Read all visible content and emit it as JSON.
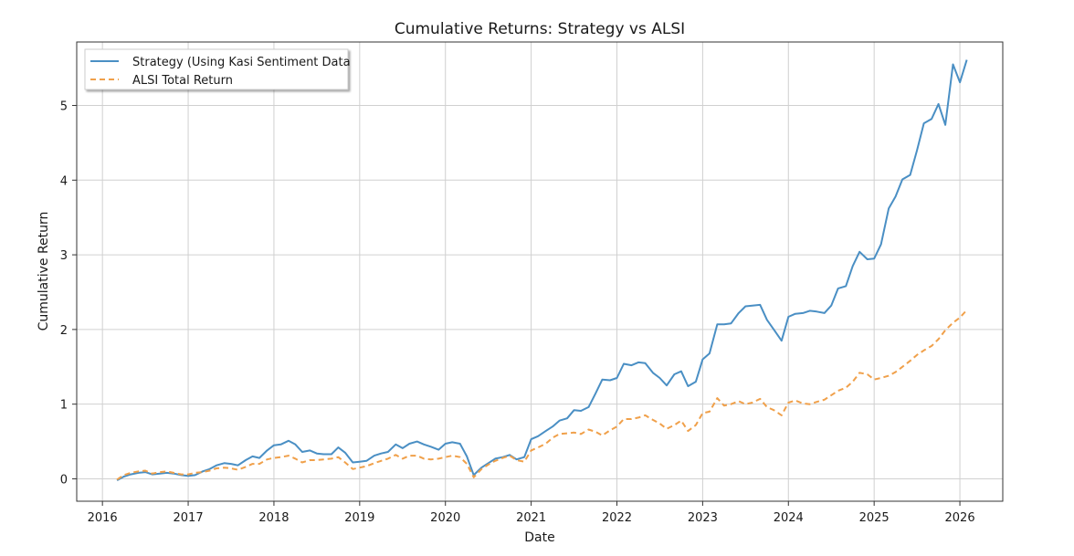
{
  "chart_data": {
    "type": "line",
    "title": "Cumulative Returns: Strategy vs ALSI",
    "xlabel": "Date",
    "ylabel": "Cumulative Return",
    "xlim": [
      2015.7,
      2026.5
    ],
    "ylim": [
      -0.3,
      5.85
    ],
    "xticks": [
      2016,
      2017,
      2018,
      2019,
      2020,
      2021,
      2022,
      2023,
      2024,
      2025,
      2026
    ],
    "yticks": [
      0,
      1,
      2,
      3,
      4,
      5
    ],
    "grid": true,
    "legend_position": "top-left",
    "colors": {
      "strategy": "#4a8fc4",
      "alsi": "#f0a04a"
    },
    "series": [
      {
        "name": "Strategy (Using Kasi Sentiment Data",
        "style": "solid",
        "points": [
          [
            2016.17,
            -0.02
          ],
          [
            2016.25,
            0.03
          ],
          [
            2016.33,
            0.06
          ],
          [
            2016.42,
            0.08
          ],
          [
            2016.5,
            0.09
          ],
          [
            2016.58,
            0.06
          ],
          [
            2016.67,
            0.07
          ],
          [
            2016.75,
            0.08
          ],
          [
            2016.83,
            0.07
          ],
          [
            2016.92,
            0.05
          ],
          [
            2017.0,
            0.04
          ],
          [
            2017.08,
            0.05
          ],
          [
            2017.17,
            0.1
          ],
          [
            2017.25,
            0.13
          ],
          [
            2017.33,
            0.18
          ],
          [
            2017.42,
            0.21
          ],
          [
            2017.5,
            0.2
          ],
          [
            2017.58,
            0.18
          ],
          [
            2017.67,
            0.25
          ],
          [
            2017.75,
            0.3
          ],
          [
            2017.83,
            0.28
          ],
          [
            2017.92,
            0.38
          ],
          [
            2018.0,
            0.45
          ],
          [
            2018.08,
            0.46
          ],
          [
            2018.17,
            0.51
          ],
          [
            2018.25,
            0.46
          ],
          [
            2018.33,
            0.36
          ],
          [
            2018.42,
            0.38
          ],
          [
            2018.5,
            0.34
          ],
          [
            2018.58,
            0.33
          ],
          [
            2018.67,
            0.33
          ],
          [
            2018.75,
            0.42
          ],
          [
            2018.83,
            0.35
          ],
          [
            2018.92,
            0.22
          ],
          [
            2019.0,
            0.23
          ],
          [
            2019.08,
            0.24
          ],
          [
            2019.17,
            0.31
          ],
          [
            2019.25,
            0.34
          ],
          [
            2019.33,
            0.36
          ],
          [
            2019.42,
            0.46
          ],
          [
            2019.5,
            0.41
          ],
          [
            2019.58,
            0.47
          ],
          [
            2019.67,
            0.5
          ],
          [
            2019.75,
            0.46
          ],
          [
            2019.83,
            0.43
          ],
          [
            2019.92,
            0.39
          ],
          [
            2020.0,
            0.47
          ],
          [
            2020.08,
            0.49
          ],
          [
            2020.17,
            0.47
          ],
          [
            2020.25,
            0.3
          ],
          [
            2020.33,
            0.05
          ],
          [
            2020.42,
            0.15
          ],
          [
            2020.5,
            0.21
          ],
          [
            2020.58,
            0.27
          ],
          [
            2020.67,
            0.29
          ],
          [
            2020.75,
            0.32
          ],
          [
            2020.83,
            0.26
          ],
          [
            2020.92,
            0.29
          ],
          [
            2021.0,
            0.53
          ],
          [
            2021.08,
            0.57
          ],
          [
            2021.17,
            0.64
          ],
          [
            2021.25,
            0.7
          ],
          [
            2021.33,
            0.78
          ],
          [
            2021.42,
            0.81
          ],
          [
            2021.5,
            0.92
          ],
          [
            2021.58,
            0.91
          ],
          [
            2021.67,
            0.96
          ],
          [
            2021.75,
            1.14
          ],
          [
            2021.83,
            1.33
          ],
          [
            2021.92,
            1.32
          ],
          [
            2022.0,
            1.35
          ],
          [
            2022.08,
            1.54
          ],
          [
            2022.17,
            1.52
          ],
          [
            2022.25,
            1.56
          ],
          [
            2022.33,
            1.55
          ],
          [
            2022.42,
            1.42
          ],
          [
            2022.5,
            1.35
          ],
          [
            2022.58,
            1.25
          ],
          [
            2022.67,
            1.4
          ],
          [
            2022.75,
            1.44
          ],
          [
            2022.83,
            1.24
          ],
          [
            2022.92,
            1.3
          ],
          [
            2023.0,
            1.6
          ],
          [
            2023.08,
            1.68
          ],
          [
            2023.17,
            2.07
          ],
          [
            2023.25,
            2.07
          ],
          [
            2023.33,
            2.08
          ],
          [
            2023.42,
            2.22
          ],
          [
            2023.5,
            2.31
          ],
          [
            2023.58,
            2.32
          ],
          [
            2023.67,
            2.33
          ],
          [
            2023.75,
            2.13
          ],
          [
            2023.83,
            2.0
          ],
          [
            2023.92,
            1.85
          ],
          [
            2024.0,
            2.17
          ],
          [
            2024.08,
            2.21
          ],
          [
            2024.17,
            2.22
          ],
          [
            2024.25,
            2.25
          ],
          [
            2024.33,
            2.24
          ],
          [
            2024.42,
            2.22
          ],
          [
            2024.5,
            2.32
          ],
          [
            2024.58,
            2.55
          ],
          [
            2024.67,
            2.58
          ],
          [
            2024.75,
            2.85
          ],
          [
            2024.83,
            3.04
          ],
          [
            2024.92,
            2.94
          ],
          [
            2025.0,
            2.95
          ],
          [
            2025.08,
            3.14
          ],
          [
            2025.17,
            3.62
          ],
          [
            2025.25,
            3.78
          ],
          [
            2025.33,
            4.01
          ],
          [
            2025.42,
            4.07
          ],
          [
            2025.5,
            4.4
          ],
          [
            2025.58,
            4.76
          ],
          [
            2025.67,
            4.82
          ],
          [
            2025.75,
            5.02
          ],
          [
            2025.83,
            4.74
          ],
          [
            2025.92,
            5.55
          ],
          [
            2026.0,
            5.31
          ],
          [
            2026.08,
            5.61
          ]
        ]
      },
      {
        "name": "ALSI Total Return",
        "style": "dashed",
        "points": [
          [
            2016.17,
            -0.01
          ],
          [
            2016.25,
            0.05
          ],
          [
            2016.33,
            0.08
          ],
          [
            2016.42,
            0.1
          ],
          [
            2016.5,
            0.11
          ],
          [
            2016.58,
            0.07
          ],
          [
            2016.67,
            0.09
          ],
          [
            2016.75,
            0.1
          ],
          [
            2016.83,
            0.08
          ],
          [
            2016.92,
            0.06
          ],
          [
            2017.0,
            0.06
          ],
          [
            2017.08,
            0.08
          ],
          [
            2017.17,
            0.09
          ],
          [
            2017.25,
            0.11
          ],
          [
            2017.33,
            0.14
          ],
          [
            2017.42,
            0.15
          ],
          [
            2017.5,
            0.14
          ],
          [
            2017.58,
            0.12
          ],
          [
            2017.67,
            0.16
          ],
          [
            2017.75,
            0.2
          ],
          [
            2017.83,
            0.2
          ],
          [
            2017.92,
            0.26
          ],
          [
            2018.0,
            0.28
          ],
          [
            2018.08,
            0.29
          ],
          [
            2018.17,
            0.31
          ],
          [
            2018.25,
            0.27
          ],
          [
            2018.33,
            0.22
          ],
          [
            2018.42,
            0.25
          ],
          [
            2018.5,
            0.25
          ],
          [
            2018.58,
            0.26
          ],
          [
            2018.67,
            0.27
          ],
          [
            2018.75,
            0.29
          ],
          [
            2018.83,
            0.22
          ],
          [
            2018.92,
            0.13
          ],
          [
            2019.0,
            0.15
          ],
          [
            2019.08,
            0.17
          ],
          [
            2019.17,
            0.21
          ],
          [
            2019.25,
            0.24
          ],
          [
            2019.33,
            0.27
          ],
          [
            2019.42,
            0.32
          ],
          [
            2019.5,
            0.27
          ],
          [
            2019.58,
            0.31
          ],
          [
            2019.67,
            0.31
          ],
          [
            2019.75,
            0.27
          ],
          [
            2019.83,
            0.26
          ],
          [
            2019.92,
            0.27
          ],
          [
            2020.0,
            0.29
          ],
          [
            2020.08,
            0.31
          ],
          [
            2020.17,
            0.29
          ],
          [
            2020.25,
            0.2
          ],
          [
            2020.33,
            0.02
          ],
          [
            2020.42,
            0.13
          ],
          [
            2020.5,
            0.19
          ],
          [
            2020.58,
            0.24
          ],
          [
            2020.67,
            0.28
          ],
          [
            2020.75,
            0.31
          ],
          [
            2020.83,
            0.25
          ],
          [
            2020.92,
            0.23
          ],
          [
            2021.0,
            0.38
          ],
          [
            2021.08,
            0.42
          ],
          [
            2021.17,
            0.47
          ],
          [
            2021.25,
            0.55
          ],
          [
            2021.33,
            0.6
          ],
          [
            2021.42,
            0.61
          ],
          [
            2021.5,
            0.62
          ],
          [
            2021.58,
            0.6
          ],
          [
            2021.67,
            0.66
          ],
          [
            2021.75,
            0.63
          ],
          [
            2021.83,
            0.58
          ],
          [
            2021.92,
            0.65
          ],
          [
            2022.0,
            0.7
          ],
          [
            2022.08,
            0.8
          ],
          [
            2022.17,
            0.8
          ],
          [
            2022.25,
            0.82
          ],
          [
            2022.33,
            0.85
          ],
          [
            2022.42,
            0.79
          ],
          [
            2022.5,
            0.74
          ],
          [
            2022.58,
            0.67
          ],
          [
            2022.67,
            0.72
          ],
          [
            2022.75,
            0.78
          ],
          [
            2022.83,
            0.64
          ],
          [
            2022.92,
            0.72
          ],
          [
            2023.0,
            0.88
          ],
          [
            2023.08,
            0.9
          ],
          [
            2023.17,
            1.08
          ],
          [
            2023.25,
            0.98
          ],
          [
            2023.33,
            1.0
          ],
          [
            2023.42,
            1.04
          ],
          [
            2023.5,
            1.0
          ],
          [
            2023.58,
            1.02
          ],
          [
            2023.67,
            1.07
          ],
          [
            2023.75,
            0.96
          ],
          [
            2023.83,
            0.92
          ],
          [
            2023.92,
            0.85
          ],
          [
            2024.0,
            1.02
          ],
          [
            2024.08,
            1.05
          ],
          [
            2024.17,
            1.01
          ],
          [
            2024.25,
            1.0
          ],
          [
            2024.33,
            1.03
          ],
          [
            2024.42,
            1.06
          ],
          [
            2024.5,
            1.12
          ],
          [
            2024.58,
            1.18
          ],
          [
            2024.67,
            1.22
          ],
          [
            2024.75,
            1.3
          ],
          [
            2024.83,
            1.42
          ],
          [
            2024.92,
            1.4
          ],
          [
            2025.0,
            1.33
          ],
          [
            2025.08,
            1.35
          ],
          [
            2025.17,
            1.38
          ],
          [
            2025.25,
            1.43
          ],
          [
            2025.33,
            1.5
          ],
          [
            2025.42,
            1.58
          ],
          [
            2025.5,
            1.66
          ],
          [
            2025.58,
            1.72
          ],
          [
            2025.67,
            1.78
          ],
          [
            2025.75,
            1.87
          ],
          [
            2025.83,
            1.99
          ],
          [
            2025.92,
            2.09
          ],
          [
            2026.0,
            2.16
          ],
          [
            2026.08,
            2.26
          ]
        ]
      }
    ]
  }
}
